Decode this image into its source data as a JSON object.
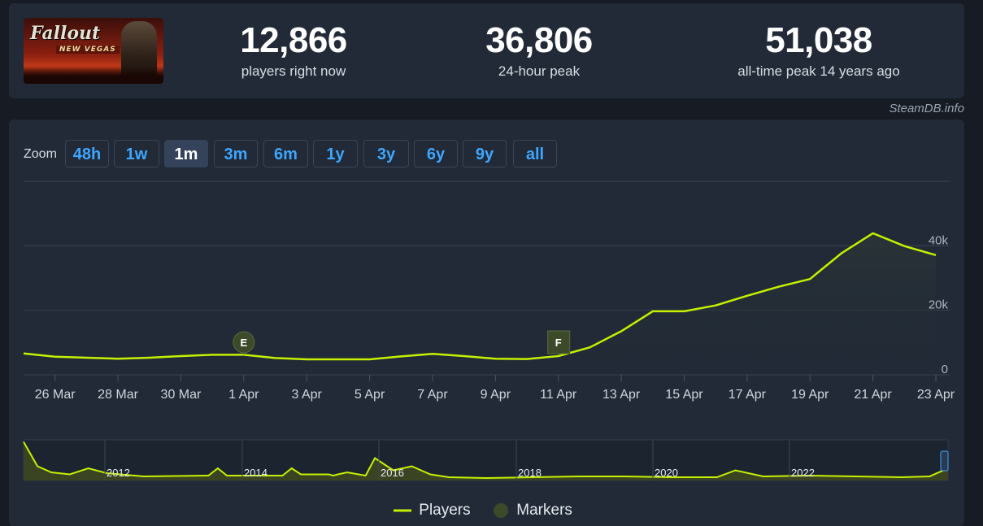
{
  "game": {
    "logo_title": "Fallout",
    "logo_subtitle": "NEW VEGAS"
  },
  "stats": [
    {
      "value": "12,866",
      "label": "players right now"
    },
    {
      "value": "36,806",
      "label": "24-hour peak"
    },
    {
      "value": "51,038",
      "label": "all-time peak 14 years ago"
    }
  ],
  "credit": "SteamDB.info",
  "zoom": {
    "label": "Zoom",
    "options": [
      "48h",
      "1w",
      "1m",
      "3m",
      "6m",
      "1y",
      "3y",
      "6y",
      "9y",
      "all"
    ],
    "active": "1m"
  },
  "colors": {
    "accent": "#3fa6ff",
    "line": "#c6f000",
    "marker": "#3c4a2a",
    "panel": "#212a36"
  },
  "chart_data": {
    "type": "line",
    "series": [
      {
        "name": "Players",
        "x": [
          "25 Mar",
          "26 Mar",
          "27 Mar",
          "28 Mar",
          "29 Mar",
          "30 Mar",
          "31 Mar",
          "1 Apr",
          "2 Apr",
          "3 Apr",
          "4 Apr",
          "5 Apr",
          "6 Apr",
          "7 Apr",
          "8 Apr",
          "9 Apr",
          "10 Apr",
          "11 Apr",
          "12 Apr",
          "13 Apr",
          "14 Apr",
          "15 Apr",
          "16 Apr",
          "17 Apr",
          "18 Apr",
          "19 Apr",
          "20 Apr",
          "21 Apr",
          "22 Apr",
          "23 Apr"
        ],
        "values": [
          6600,
          5600,
          5300,
          5000,
          5300,
          5800,
          6200,
          6200,
          5200,
          4800,
          4800,
          4800,
          5700,
          6500,
          5800,
          5000,
          4900,
          5800,
          8500,
          13500,
          19700,
          19700,
          21500,
          24500,
          27300,
          29700,
          37700,
          43900,
          39900,
          37100
        ]
      }
    ],
    "x_tick_labels": [
      "26 Mar",
      "28 Mar",
      "30 Mar",
      "1 Apr",
      "3 Apr",
      "5 Apr",
      "7 Apr",
      "9 Apr",
      "11 Apr",
      "13 Apr",
      "15 Apr",
      "17 Apr",
      "19 Apr",
      "21 Apr",
      "23 Apr"
    ],
    "y_ticks": [
      0,
      20000,
      40000
    ],
    "y_tick_labels": [
      "0",
      "20k",
      "40k"
    ],
    "ylim": [
      0,
      60000
    ],
    "grid": true,
    "markers": [
      {
        "label": "E",
        "x": "1 Apr",
        "shape": "circle"
      },
      {
        "label": "F",
        "x": "11 Apr",
        "shape": "flag"
      }
    ],
    "navigator": {
      "year_labels": [
        "2012",
        "2014",
        "2016",
        "2018",
        "2020",
        "2022"
      ]
    },
    "legend": {
      "position": "bottom-center",
      "items": [
        "Players",
        "Markers"
      ]
    }
  }
}
